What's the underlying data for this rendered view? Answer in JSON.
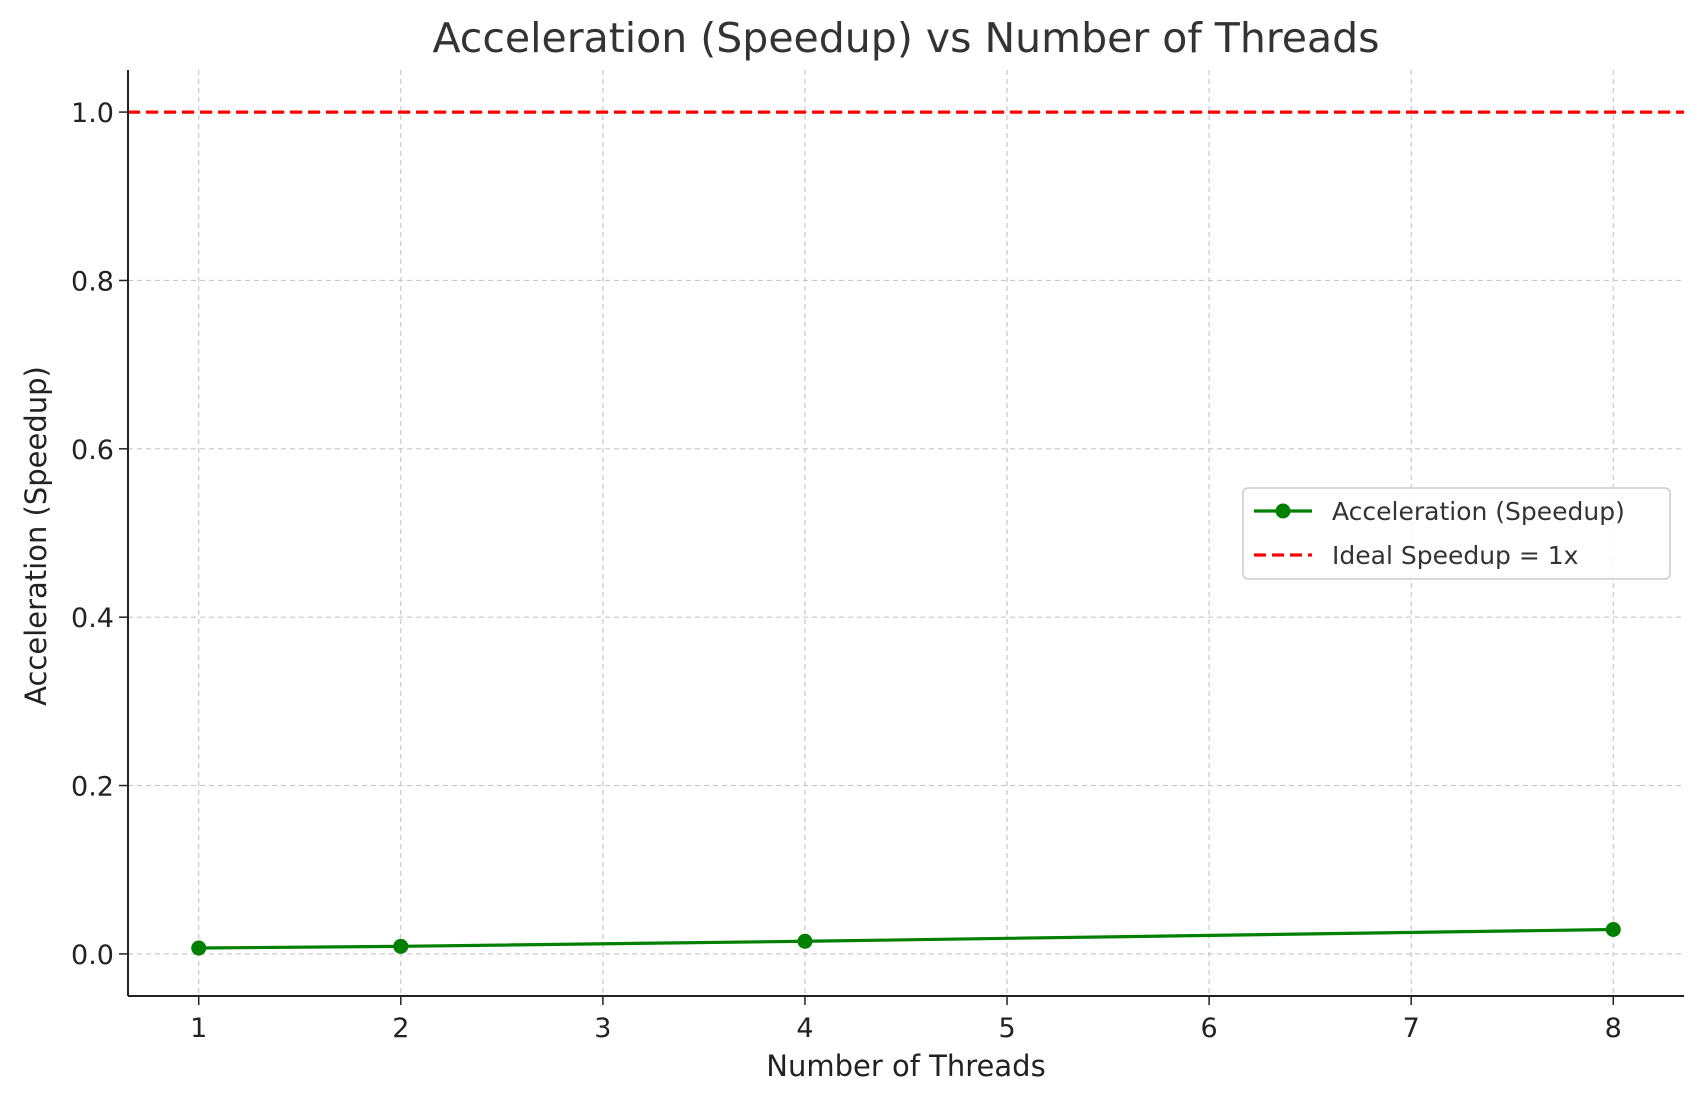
{
  "chart_data": {
    "type": "line",
    "title": "Acceleration (Speedup) vs Number of Threads",
    "xlabel": "Number of Threads",
    "ylabel": "Acceleration (Speedup)",
    "xlim": [
      0.65,
      8.35
    ],
    "ylim": [
      -0.05,
      1.05
    ],
    "x_ticks": [
      1,
      2,
      3,
      4,
      5,
      6,
      7,
      8
    ],
    "y_ticks": [
      0.0,
      0.2,
      0.4,
      0.6,
      0.8,
      1.0
    ],
    "y_tick_labels": [
      "0.0",
      "0.2",
      "0.4",
      "0.6",
      "0.8",
      "1.0"
    ],
    "grid": true,
    "legend_position": "center-right",
    "series": [
      {
        "name": "Acceleration (Speedup)",
        "color": "#008000",
        "marker": "circle",
        "x": [
          1,
          2,
          4,
          8
        ],
        "y": [
          0.007,
          0.009,
          0.015,
          0.029
        ]
      }
    ],
    "reference_lines": [
      {
        "name": "Ideal Speedup = 1x",
        "orientation": "horizontal",
        "y": 1.0,
        "color": "#ff0000",
        "style": "dashed"
      }
    ]
  }
}
